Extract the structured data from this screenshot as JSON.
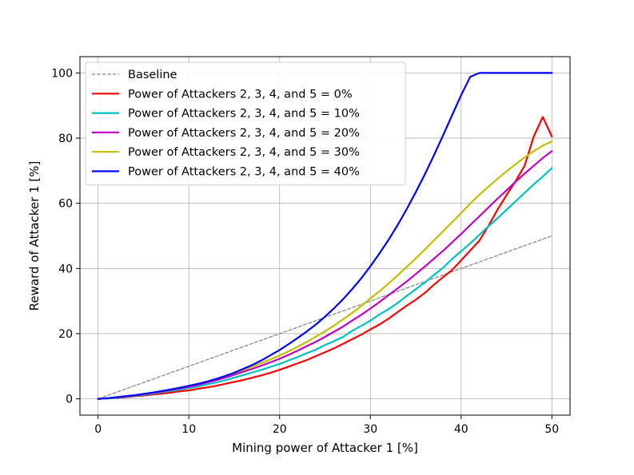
{
  "chart_data": {
    "type": "line",
    "title": "",
    "xlabel": "Mining power of Attacker 1 [%]",
    "ylabel": "Reward of Attacker 1 [%]",
    "xlim": [
      -2,
      52
    ],
    "ylim": [
      -5,
      105
    ],
    "xticks": [
      0,
      10,
      20,
      30,
      40,
      50
    ],
    "yticks": [
      0,
      20,
      40,
      60,
      80,
      100
    ],
    "xtick_labels": [
      "0",
      "10",
      "20",
      "30",
      "40",
      "50"
    ],
    "ytick_labels": [
      "0",
      "20",
      "40",
      "60",
      "80",
      "100"
    ],
    "grid": true,
    "legend_position": "upper-left",
    "series": [
      {
        "name": "Baseline",
        "color": "#808080",
        "dashed": true,
        "x": [
          0,
          50
        ],
        "y": [
          0,
          50
        ]
      },
      {
        "name": "Power of Attackers 2, 3, 4, and 5 = 0%",
        "color": "#ff0000",
        "x": [
          0,
          1,
          2,
          3,
          4,
          5,
          6,
          7,
          8,
          9,
          10,
          11,
          12,
          13,
          14,
          15,
          16,
          17,
          18,
          19,
          20,
          21,
          22,
          23,
          24,
          25,
          26,
          27,
          28,
          29,
          30,
          31,
          32,
          33,
          34,
          35,
          36,
          37,
          38,
          39,
          40,
          41,
          42,
          43,
          44,
          45,
          46,
          47,
          48,
          49,
          50
        ],
        "y": [
          0,
          0.1,
          0.3,
          0.5,
          0.8,
          1.0,
          1.3,
          1.6,
          1.9,
          2.3,
          2.6,
          3.1,
          3.5,
          4.0,
          4.6,
          5.2,
          5.8,
          6.5,
          7.2,
          8.0,
          8.9,
          9.9,
          10.9,
          11.9,
          13.1,
          14.3,
          15.5,
          16.9,
          18.3,
          19.7,
          21.3,
          22.8,
          24.6,
          26.6,
          28.6,
          30.4,
          32.5,
          35.0,
          37.3,
          39.5,
          42.5,
          45.5,
          48.5,
          53.0,
          58.0,
          62.5,
          66.8,
          71.5,
          80.5,
          86.5,
          80.5
        ]
      },
      {
        "name": "Power of Attackers 2, 3, 4, and 5 = 10%",
        "color": "#00bfbf",
        "x": [
          0,
          1,
          2,
          3,
          4,
          5,
          6,
          7,
          8,
          9,
          10,
          11,
          12,
          13,
          14,
          15,
          16,
          17,
          18,
          19,
          20,
          21,
          22,
          23,
          24,
          25,
          26,
          27,
          28,
          29,
          30,
          31,
          32,
          33,
          34,
          35,
          36,
          37,
          38,
          39,
          40,
          41,
          42,
          43,
          44,
          45,
          46,
          47,
          48,
          49,
          50
        ],
        "y": [
          0,
          0.1,
          0.3,
          0.6,
          0.9,
          1.2,
          1.6,
          2.0,
          2.4,
          2.8,
          3.3,
          3.8,
          4.4,
          5.0,
          5.7,
          6.5,
          7.3,
          8.1,
          8.9,
          9.8,
          10.7,
          11.8,
          12.8,
          14.0,
          15.1,
          16.5,
          17.7,
          19.0,
          20.9,
          22.4,
          24.0,
          25.9,
          27.5,
          29.4,
          31.6,
          33.6,
          35.7,
          38.0,
          40.2,
          42.9,
          45.3,
          47.7,
          50.3,
          52.9,
          55.4,
          58.0,
          60.6,
          63.2,
          65.8,
          68.2,
          70.8
        ]
      },
      {
        "name": "Power of Attackers 2, 3, 4, and 5 = 20%",
        "color": "#bf00bf",
        "x": [
          0,
          1,
          2,
          3,
          4,
          5,
          6,
          7,
          8,
          9,
          10,
          11,
          12,
          13,
          14,
          15,
          16,
          17,
          18,
          19,
          20,
          21,
          22,
          23,
          24,
          25,
          26,
          27,
          28,
          29,
          30,
          31,
          32,
          33,
          34,
          35,
          36,
          37,
          38,
          39,
          40,
          41,
          42,
          43,
          44,
          45,
          46,
          47,
          48,
          49,
          50
        ],
        "y": [
          0,
          0.2,
          0.4,
          0.7,
          1.0,
          1.4,
          1.8,
          2.2,
          2.7,
          3.2,
          3.7,
          4.3,
          5.0,
          5.7,
          6.5,
          7.4,
          8.3,
          9.2,
          10.2,
          11.2,
          12.3,
          13.5,
          14.8,
          16.2,
          17.5,
          19.0,
          20.6,
          22.2,
          24.0,
          25.8,
          27.7,
          29.7,
          31.8,
          33.9,
          36.0,
          38.3,
          40.6,
          43.0,
          45.4,
          48.0,
          50.6,
          53.3,
          56.0,
          58.7,
          61.4,
          64.0,
          66.6,
          69.1,
          71.5,
          73.9,
          76.0
        ]
      },
      {
        "name": "Power of Attackers 2, 3, 4, and 5 = 30%",
        "color": "#bfbf00",
        "x": [
          0,
          1,
          2,
          3,
          4,
          5,
          6,
          7,
          8,
          9,
          10,
          11,
          12,
          13,
          14,
          15,
          16,
          17,
          18,
          19,
          20,
          21,
          22,
          23,
          24,
          25,
          26,
          27,
          28,
          29,
          30,
          31,
          32,
          33,
          34,
          35,
          36,
          37,
          38,
          39,
          40,
          41,
          42,
          43,
          44,
          45,
          46,
          47,
          48,
          49,
          50
        ],
        "y": [
          0,
          0.2,
          0.5,
          0.8,
          1.1,
          1.5,
          1.9,
          2.4,
          2.9,
          3.4,
          4.0,
          4.6,
          5.3,
          6.1,
          7.0,
          7.9,
          8.9,
          9.9,
          11.0,
          12.1,
          13.3,
          14.6,
          16.0,
          17.5,
          19.1,
          20.7,
          22.5,
          24.4,
          26.4,
          28.5,
          30.8,
          33.0,
          35.4,
          37.9,
          40.5,
          43.1,
          45.8,
          48.6,
          51.4,
          54.2,
          57.0,
          59.9,
          62.6,
          65.1,
          67.5,
          69.8,
          72.0,
          74.1,
          76.0,
          77.7,
          79.0
        ]
      },
      {
        "name": "Power of Attackers 2, 3, 4, and 5 = 40%",
        "color": "#0000ff",
        "x": [
          0,
          1,
          2,
          3,
          4,
          5,
          6,
          7,
          8,
          9,
          10,
          11,
          12,
          13,
          14,
          15,
          16,
          17,
          18,
          19,
          20,
          21,
          22,
          23,
          24,
          25,
          26,
          27,
          28,
          29,
          30,
          31,
          32,
          33,
          34,
          35,
          36,
          37,
          38,
          39,
          40,
          41,
          42,
          43,
          44,
          45,
          46,
          47,
          48,
          49,
          50
        ],
        "y": [
          0,
          0.2,
          0.5,
          0.8,
          1.1,
          1.5,
          1.9,
          2.4,
          2.9,
          3.4,
          4.0,
          4.6,
          5.3,
          6.1,
          7.0,
          8.0,
          9.2,
          10.4,
          11.8,
          13.4,
          15.0,
          16.8,
          18.7,
          20.7,
          22.8,
          25.2,
          27.8,
          30.6,
          33.7,
          37.0,
          40.7,
          44.6,
          48.8,
          53.3,
          58.2,
          63.4,
          68.9,
          74.7,
          80.8,
          87.0,
          93.2,
          98.8,
          100.0,
          100.0,
          100.0,
          100.0,
          100.0,
          100.0,
          100.0,
          100.0,
          100.0
        ]
      }
    ]
  }
}
